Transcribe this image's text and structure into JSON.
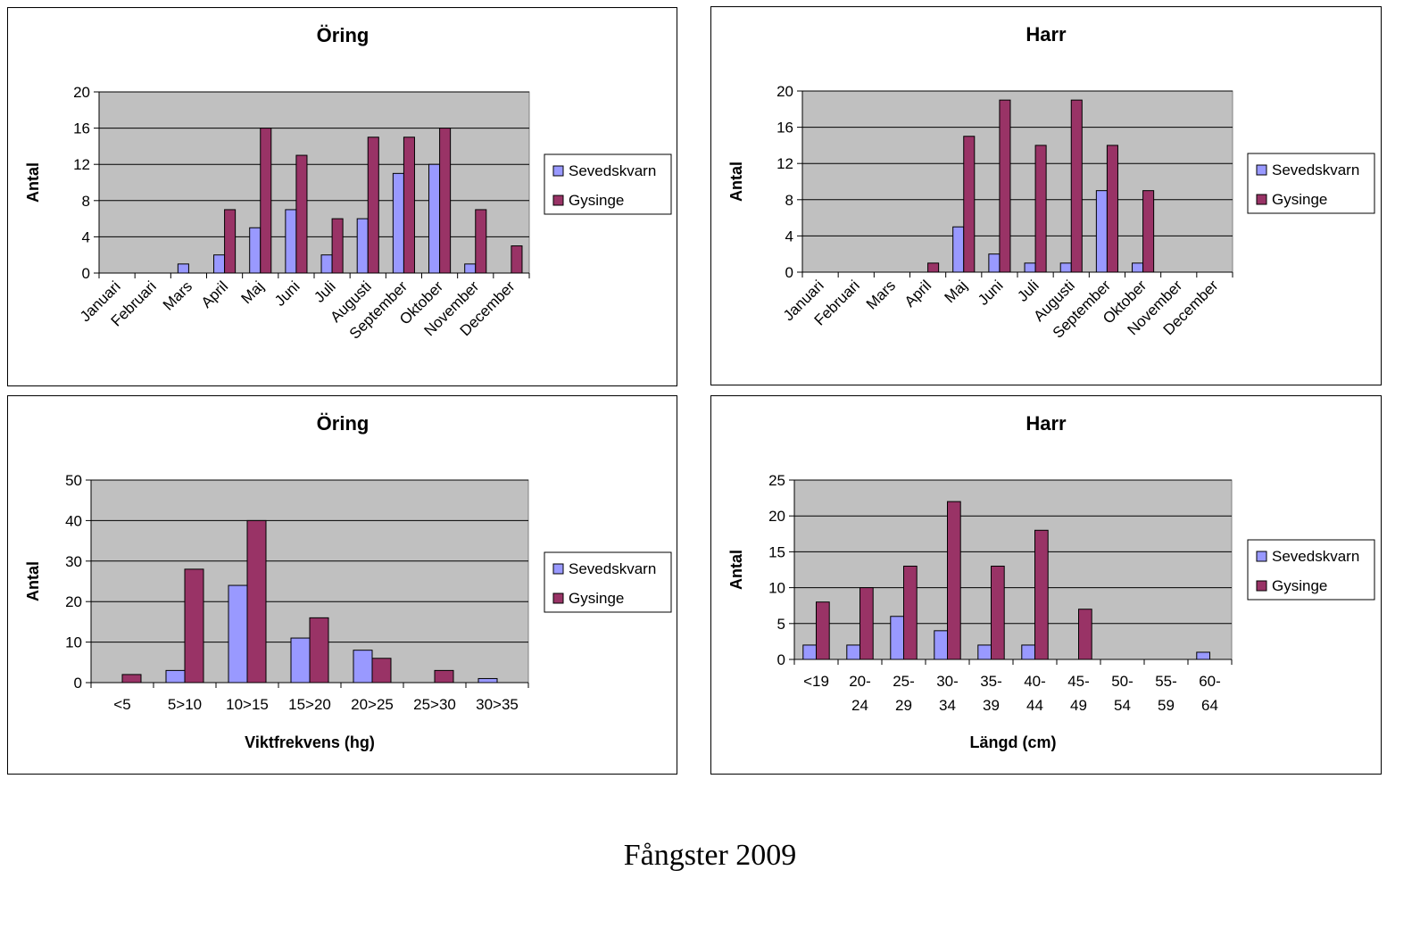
{
  "caption": "Fångster 2009",
  "colors": {
    "sevedskvarn": "#9999ff",
    "gysinge": "#993366",
    "plot_bg": "#c0c0c0",
    "gridline": "#000000"
  },
  "chart_data": [
    {
      "id": "oring-month",
      "type": "bar",
      "title": "Öring",
      "xlabel": "",
      "ylabel": "Antal",
      "ylim": [
        0,
        20
      ],
      "yticks": [
        0,
        4,
        8,
        12,
        16,
        20
      ],
      "legend_position": "right",
      "tick_label_rotation": "diagonal",
      "categories": [
        "Januari",
        "Februari",
        "Mars",
        "April",
        "Maj",
        "Juni",
        "Juli",
        "Augusti",
        "September",
        "Oktober",
        "November",
        "December"
      ],
      "series": [
        {
          "name": "Sevedskvarn",
          "color": "#9999ff",
          "values": [
            0,
            0,
            1,
            2,
            5,
            7,
            2,
            6,
            11,
            12,
            1,
            0
          ]
        },
        {
          "name": "Gysinge",
          "color": "#993366",
          "values": [
            0,
            0,
            0,
            7,
            16,
            13,
            6,
            15,
            15,
            16,
            7,
            3
          ]
        }
      ]
    },
    {
      "id": "harr-month",
      "type": "bar",
      "title": "Harr",
      "xlabel": "",
      "ylabel": "Antal",
      "ylim": [
        0,
        20
      ],
      "yticks": [
        0,
        4,
        8,
        12,
        16,
        20
      ],
      "legend_position": "right",
      "tick_label_rotation": "diagonal",
      "categories": [
        "Januari",
        "Februari",
        "Mars",
        "April",
        "Maj",
        "Juni",
        "Juli",
        "Augusti",
        "September",
        "Oktober",
        "November",
        "December"
      ],
      "series": [
        {
          "name": "Sevedskvarn",
          "color": "#9999ff",
          "values": [
            0,
            0,
            0,
            0,
            5,
            2,
            1,
            1,
            9,
            1,
            0,
            0
          ]
        },
        {
          "name": "Gysinge",
          "color": "#993366",
          "values": [
            0,
            0,
            0,
            1,
            15,
            19,
            14,
            19,
            14,
            9,
            0,
            0
          ]
        }
      ]
    },
    {
      "id": "oring-weight",
      "type": "bar",
      "title": "Öring",
      "xlabel": "Viktfrekvens (hg)",
      "ylabel": "Antal",
      "ylim": [
        0,
        50
      ],
      "yticks": [
        0,
        10,
        20,
        30,
        40,
        50
      ],
      "legend_position": "right",
      "tick_label_rotation": "none",
      "categories": [
        "<5",
        "5>10",
        "10>15",
        "15>20",
        "20>25",
        "25>30",
        "30>35"
      ],
      "series": [
        {
          "name": "Sevedskvarn",
          "color": "#9999ff",
          "values": [
            0,
            3,
            24,
            11,
            8,
            0,
            1
          ]
        },
        {
          "name": "Gysinge",
          "color": "#993366",
          "values": [
            2,
            28,
            40,
            16,
            6,
            3,
            0
          ]
        }
      ]
    },
    {
      "id": "harr-length",
      "type": "bar",
      "title": "Harr",
      "xlabel": "Längd (cm)",
      "ylabel": "Antal",
      "ylim": [
        0,
        25
      ],
      "yticks": [
        0,
        5,
        10,
        15,
        20,
        25
      ],
      "legend_position": "right",
      "tick_label_rotation": "wrapped",
      "categories": [
        "<19",
        "20-24",
        "25-29",
        "30-34",
        "35-39",
        "40-44",
        "45-49",
        "50-54",
        "55-59",
        "60-64"
      ],
      "series": [
        {
          "name": "Sevedskvarn",
          "color": "#9999ff",
          "values": [
            2,
            2,
            6,
            4,
            2,
            2,
            0,
            0,
            0,
            1
          ]
        },
        {
          "name": "Gysinge",
          "color": "#993366",
          "values": [
            8,
            10,
            13,
            22,
            13,
            18,
            7,
            0,
            0,
            0
          ]
        }
      ]
    }
  ]
}
